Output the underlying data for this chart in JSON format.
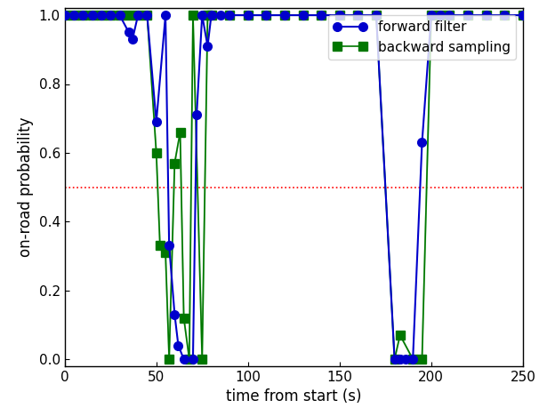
{
  "forward_x": [
    0,
    5,
    10,
    15,
    20,
    25,
    30,
    35,
    37,
    40,
    45,
    50,
    55,
    57,
    60,
    62,
    65,
    70,
    72,
    75,
    78,
    80,
    85,
    90,
    100,
    110,
    120,
    130,
    140,
    150,
    160,
    170,
    180,
    183,
    186,
    190,
    195,
    200,
    205,
    210,
    220,
    230,
    240,
    250
  ],
  "forward_y": [
    1.0,
    1.0,
    1.0,
    1.0,
    1.0,
    1.0,
    1.0,
    0.95,
    0.93,
    1.0,
    1.0,
    0.69,
    1.0,
    0.33,
    0.13,
    0.04,
    0.0,
    0.0,
    0.71,
    1.0,
    0.91,
    1.0,
    1.0,
    1.0,
    1.0,
    1.0,
    1.0,
    1.0,
    1.0,
    1.0,
    1.0,
    1.0,
    0.0,
    0.0,
    0.0,
    0.0,
    0.63,
    1.0,
    1.0,
    1.0,
    1.0,
    1.0,
    1.0,
    1.0
  ],
  "backward_x": [
    0,
    5,
    10,
    15,
    20,
    25,
    30,
    35,
    40,
    45,
    50,
    52,
    55,
    57,
    60,
    63,
    65,
    68,
    70,
    75,
    78,
    80,
    90,
    100,
    110,
    120,
    130,
    140,
    150,
    160,
    170,
    180,
    183,
    190,
    195,
    200,
    205,
    210,
    220,
    230,
    240,
    250
  ],
  "backward_y": [
    1.0,
    1.0,
    1.0,
    1.0,
    1.0,
    1.0,
    1.0,
    1.0,
    1.0,
    1.0,
    0.6,
    0.33,
    0.31,
    0.0,
    0.57,
    0.66,
    0.12,
    0.0,
    1.0,
    0.0,
    1.0,
    1.0,
    1.0,
    1.0,
    1.0,
    1.0,
    1.0,
    1.0,
    1.0,
    1.0,
    1.0,
    0.0,
    0.07,
    0.0,
    0.0,
    1.0,
    1.0,
    1.0,
    1.0,
    1.0,
    1.0,
    1.0
  ],
  "forward_color": "#0000cc",
  "backward_marker_color": "#007700",
  "backward_line_color": "#aaddaa",
  "dotted_line_y": 0.5,
  "dotted_line_color": "red",
  "xlabel": "time from start (s)",
  "ylabel": "on-road probability",
  "xlim": [
    0,
    250
  ],
  "ylim": [
    -0.02,
    1.02
  ],
  "xticks": [
    0,
    50,
    100,
    150,
    200,
    250
  ],
  "yticks": [
    0.0,
    0.2,
    0.4,
    0.6,
    0.8,
    1.0
  ],
  "legend_forward": "forward filter",
  "legend_backward": "backward sampling",
  "figsize": [
    6.06,
    4.68
  ],
  "dpi": 100
}
